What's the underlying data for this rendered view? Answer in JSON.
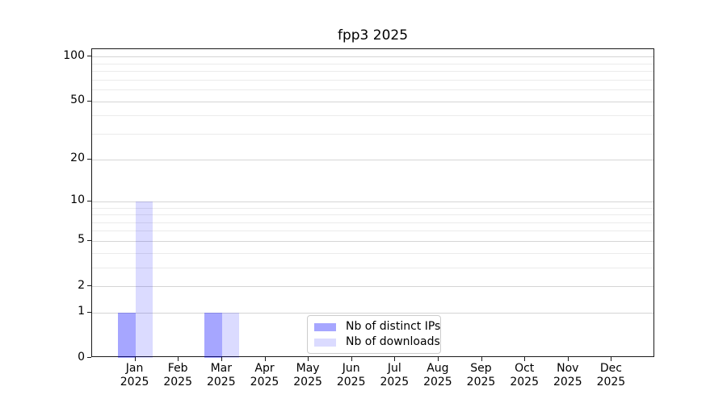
{
  "chart_data": {
    "type": "bar",
    "title": "fpp3 2025",
    "months": [
      "Jan",
      "Feb",
      "Mar",
      "Apr",
      "May",
      "Jun",
      "Jul",
      "Aug",
      "Sep",
      "Oct",
      "Nov",
      "Dec"
    ],
    "year": "2025",
    "series": [
      {
        "name": "Nb of distinct IPs",
        "color": "rgba(0,0,255,0.35)",
        "values": [
          1,
          0,
          1,
          0,
          0,
          0,
          0,
          0,
          0,
          0,
          0,
          0
        ]
      },
      {
        "name": "Nb of downloads",
        "color": "rgba(0,0,255,0.14)",
        "values": [
          10,
          0,
          1,
          0,
          0,
          0,
          0,
          0,
          0,
          0,
          0,
          0
        ]
      }
    ],
    "yscale": "log1p",
    "ylim": [
      0,
      112.3
    ],
    "y_major_ticks": [
      0,
      1,
      2,
      5,
      10,
      20,
      50,
      100
    ],
    "y_minor_gridlines": [
      3,
      4,
      6,
      7,
      8,
      9,
      30,
      40,
      60,
      70,
      80,
      90
    ],
    "xlabel": "",
    "ylabel": "",
    "grid": true,
    "legend_position": "lower center",
    "colors": {
      "major_grid": "#d5d5d5",
      "minor_grid": "#ebebeb",
      "axis": "#1a1a1a"
    }
  }
}
